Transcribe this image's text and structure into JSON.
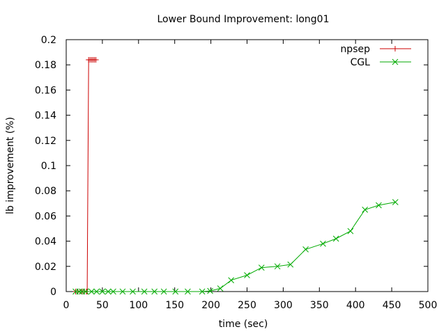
{
  "chart_data": {
    "type": "line",
    "title": "Lower Bound Improvement: long01",
    "xlabel": "time (sec)",
    "ylabel": "lb improvement (%)",
    "xlim": [
      0,
      500
    ],
    "ylim": [
      0,
      0.2
    ],
    "xticks": [
      0,
      50,
      100,
      150,
      200,
      250,
      300,
      350,
      400,
      450,
      500
    ],
    "yticks": [
      0,
      0.02,
      0.04,
      0.06,
      0.08,
      0.1,
      0.12,
      0.14,
      0.16,
      0.18,
      0.2
    ],
    "grid": false,
    "legend": "top-right",
    "series": [
      {
        "name": "npsep",
        "color": "#cc0000",
        "marker": "plus",
        "x": [
          13,
          16,
          19,
          22,
          25,
          28,
          29,
          31,
          33,
          35,
          37,
          39,
          41
        ],
        "y": [
          0,
          0,
          0,
          0,
          0,
          0,
          0,
          0.184,
          0.184,
          0.184,
          0.184,
          0.184,
          0.184
        ]
      },
      {
        "name": "CGL",
        "color": "#00aa00",
        "marker": "x",
        "x": [
          13,
          18,
          22,
          27,
          35,
          42,
          50,
          58,
          65,
          78,
          92,
          108,
          122,
          135,
          151,
          168,
          188,
          199,
          213,
          228,
          250,
          270,
          292,
          310,
          331,
          355,
          373,
          393,
          413,
          432,
          455
        ],
        "y": [
          0,
          0,
          0,
          0,
          0,
          0,
          0,
          0,
          0,
          0,
          0,
          0,
          0,
          0,
          0,
          0,
          0,
          0.0005,
          0.0025,
          0.009,
          0.013,
          0.019,
          0.02,
          0.0215,
          0.0335,
          0.038,
          0.042,
          0.048,
          0.065,
          0.0685,
          0.071
        ]
      }
    ]
  }
}
